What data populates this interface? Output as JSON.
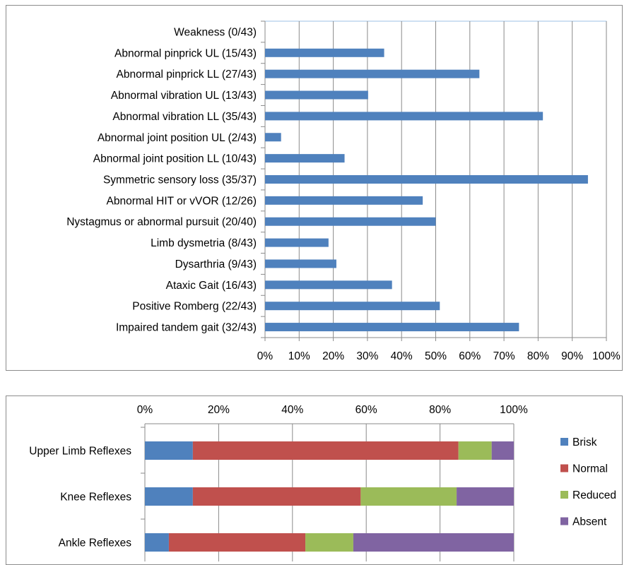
{
  "chart_data": [
    {
      "type": "bar",
      "orientation": "horizontal",
      "categories": [
        "Weakness (0/43)",
        "Abnormal pinprick UL (15/43)",
        "Abnormal pinprick LL (27/43)",
        "Abnormal vibration UL (13/43)",
        "Abnormal vibration LL (35/43)",
        "Abnormal joint position UL (2/43)",
        "Abnormal joint position LL (10/43)",
        "Symmetric sensory loss (35/37)",
        "Abnormal HIT or vVOR (12/26)",
        "Nystagmus or abnormal pursuit (20/40)",
        "Limb dysmetria (8/43)",
        "Dysarthria (9/43)",
        "Ataxic Gait (16/43)",
        "Positive Romberg (22/43)",
        "Impaired tandem gait (32/43)"
      ],
      "values": [
        0,
        0.349,
        0.628,
        0.302,
        0.814,
        0.047,
        0.233,
        0.946,
        0.462,
        0.5,
        0.186,
        0.209,
        0.372,
        0.512,
        0.744
      ],
      "xlim": [
        0,
        1
      ],
      "xticks": [
        "0%",
        "10%",
        "20%",
        "30%",
        "40%",
        "50%",
        "60%",
        "70%",
        "80%",
        "90%",
        "100%"
      ],
      "grid": true,
      "color": "#4f81bd"
    },
    {
      "type": "bar",
      "orientation": "horizontal",
      "stacked": true,
      "categories": [
        "Upper Limb Reflexes",
        "Knee Reflexes",
        "Ankle Reflexes"
      ],
      "series": [
        {
          "name": "Brisk",
          "color": "#4f81bd",
          "values": [
            0.13,
            0.13,
            0.065
          ]
        },
        {
          "name": "Normal",
          "color": "#c0504d",
          "values": [
            0.72,
            0.455,
            0.37
          ]
        },
        {
          "name": "Reduced",
          "color": "#9bbb59",
          "values": [
            0.09,
            0.26,
            0.13
          ]
        },
        {
          "name": "Absent",
          "color": "#8064a2",
          "values": [
            0.06,
            0.155,
            0.435
          ]
        }
      ],
      "xlim": [
        0,
        1
      ],
      "xticks": [
        "0%",
        "20%",
        "40%",
        "60%",
        "80%",
        "100%"
      ],
      "axis_position": "top",
      "legend": "right",
      "grid": true
    }
  ]
}
